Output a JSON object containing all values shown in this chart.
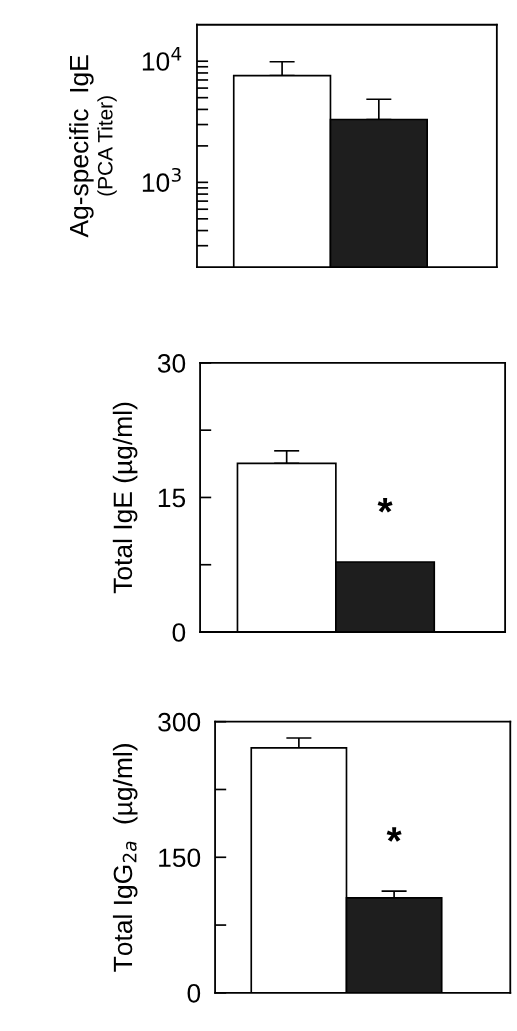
{
  "chart_data": [
    {
      "type": "bar",
      "ylabel": "Ag-specific  IgE\n(PCA Titer)",
      "categories": [
        null,
        null
      ],
      "series": [
        {
          "values": [
            7600,
            3300
          ],
          "errors": [
            [
              7600,
              9900
            ],
            [
              3300,
              4850
            ]
          ]
        }
      ],
      "colors": [
        "#ffffff",
        "#1e1e1e"
      ],
      "log": true,
      "ylim": [
        200,
        20000
      ],
      "yticks": [
        {
          "value": 300,
          "label": null
        },
        {
          "value": 400,
          "label": null
        },
        {
          "value": 500,
          "label": null
        },
        {
          "value": 600,
          "label": null
        },
        {
          "value": 700,
          "label": null
        },
        {
          "value": 800,
          "label": null
        },
        {
          "value": 900,
          "label": null
        },
        {
          "value": 1000,
          "label": "10$^{3}$"
        },
        {
          "value": 2000,
          "label": null
        },
        {
          "value": 3000,
          "label": null
        },
        {
          "value": 4000,
          "label": null
        },
        {
          "value": 5000,
          "label": null
        },
        {
          "value": 6000,
          "label": null
        },
        {
          "value": 7000,
          "label": null
        },
        {
          "value": 8000,
          "label": null
        },
        {
          "value": 9000,
          "label": null
        },
        {
          "value": 10000,
          "label": "10$^{4}$"
        }
      ],
      "grid": false,
      "legend": false
    },
    {
      "type": "bar",
      "ylabel": "Total IgE (µg/ml)",
      "annotations": [
        "*"
      ],
      "categories": [
        null,
        null
      ],
      "series": [
        {
          "values": [
            18.8,
            7.8
          ],
          "errors": [
            [
              18.8,
              20.2
            ],
            null
          ]
        }
      ],
      "colors": [
        "#ffffff",
        "#1e1e1e"
      ],
      "ylim": [
        0,
        30
      ],
      "yticks": [
        0,
        {
          "value": 7.5,
          "label": null
        },
        15,
        {
          "value": 22.5,
          "label": null
        },
        30
      ],
      "grid": false,
      "legend": false
    },
    {
      "type": "bar",
      "ylabel": "Total IgG$_{2a}$  (µg/ml)",
      "annotations": [
        "*"
      ],
      "categories": [
        null,
        null
      ],
      "series": [
        {
          "values": [
            271,
            105
          ],
          "errors": [
            [
              271,
              282
            ],
            [
              105,
              112.5
            ]
          ]
        }
      ],
      "colors": [
        "#ffffff",
        "#1e1e1e"
      ],
      "ylim": [
        0,
        300
      ],
      "yticks": [
        0,
        {
          "value": 75,
          "label": null
        },
        150,
        {
          "value": 225,
          "label": null
        },
        300
      ],
      "grid": false,
      "legend": false
    }
  ]
}
